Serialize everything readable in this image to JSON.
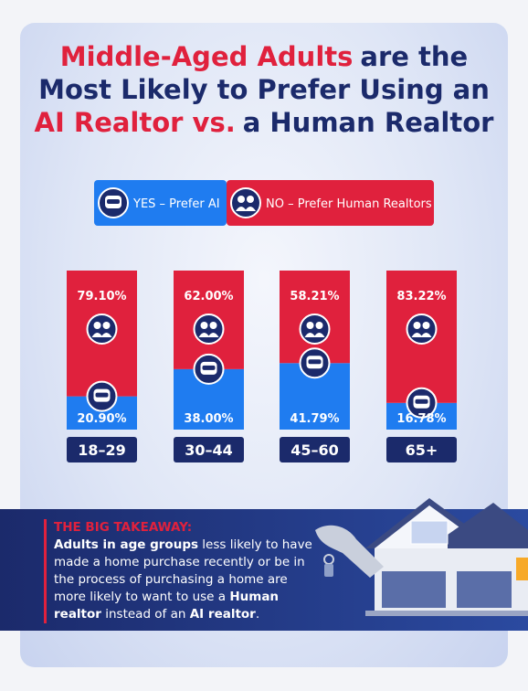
{
  "chart_data": {
    "type": "bar",
    "title_parts": [
      {
        "text": "Middle-Aged Adults",
        "color": "#e0213d"
      },
      {
        "text": "are the",
        "color": "#1b2a6b"
      },
      {
        "text": "Most Likely to Prefer Using an",
        "color": "#1b2a6b"
      },
      {
        "text": "AI Realtor vs.",
        "color": "#e0213d"
      },
      {
        "text": "a Human Realtor",
        "color": "#1b2a6b"
      }
    ],
    "categories": [
      "18–29",
      "30–44",
      "45–60",
      "65+"
    ],
    "stacked": true,
    "ylim": [
      0,
      100
    ],
    "series": [
      {
        "name": "YES – Prefer AI",
        "color": "#1f7cf0",
        "values": [
          20.9,
          38.0,
          41.79,
          16.78
        ],
        "value_labels": [
          "20.90%",
          "38.00%",
          "41.79%",
          "16.78%"
        ]
      },
      {
        "name": "NO – Prefer Human Realtors",
        "color": "#e0213d",
        "values": [
          79.1,
          62.0,
          58.21,
          83.22
        ],
        "value_labels": [
          "79.10%",
          "62.00%",
          "58.21%",
          "83.22%"
        ]
      }
    ]
  },
  "takeaway": {
    "heading": "THE BIG TAKEAWAY:",
    "runs": [
      {
        "text": "Adults in age groups",
        "bold": true
      },
      {
        "text": " less likely to have made a home purchase recently or be in the process of purchasing a home are more likely to want to use a ",
        "bold": false
      },
      {
        "text": "Human realtor",
        "bold": true
      },
      {
        "text": " instead of an ",
        "bold": false
      },
      {
        "text": "AI realtor",
        "bold": true
      },
      {
        "text": ".",
        "bold": false
      }
    ]
  }
}
